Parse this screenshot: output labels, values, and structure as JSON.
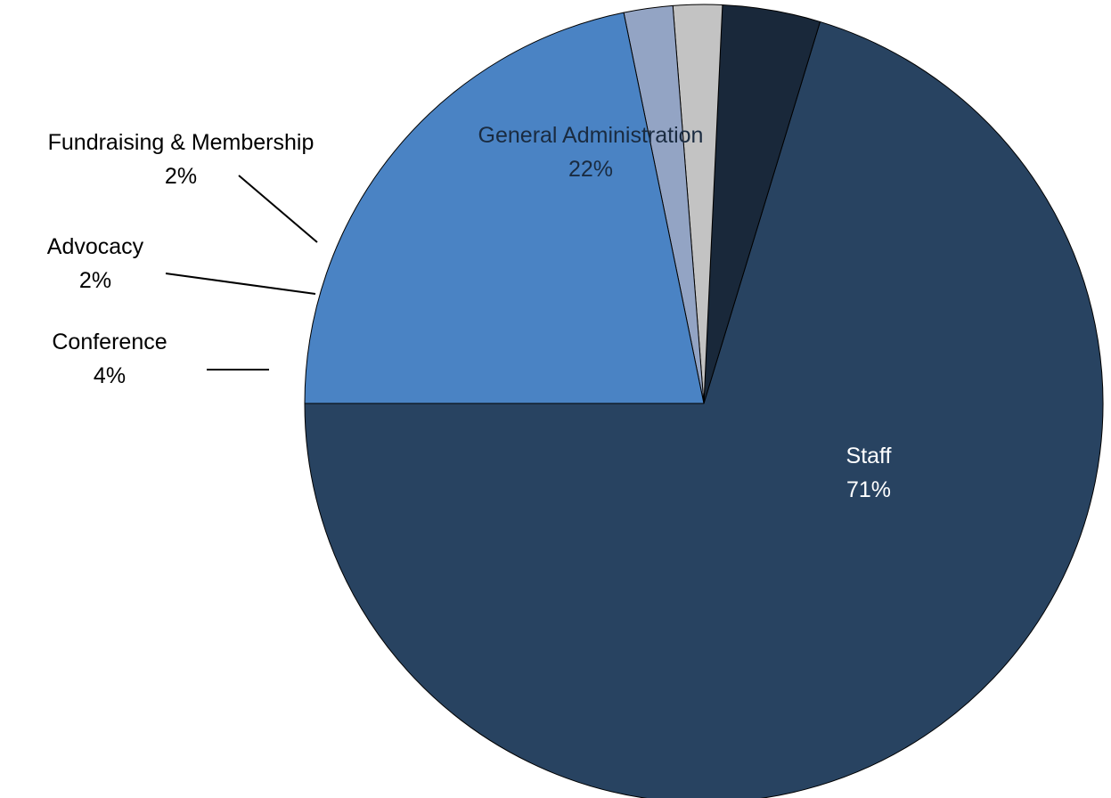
{
  "chart_data": {
    "type": "pie",
    "title": "",
    "slices": [
      {
        "label": "Staff",
        "value": 71,
        "display": "71%",
        "color": "#284361",
        "text_color": "#ffffff"
      },
      {
        "label": "Conference",
        "value": 4,
        "display": "4%",
        "color": "#19283a",
        "text_color": "#000000"
      },
      {
        "label": "Advocacy",
        "value": 2,
        "display": "2%",
        "color": "#c3c3c3",
        "text_color": "#000000"
      },
      {
        "label": "Fundraising & Membership",
        "value": 2,
        "display": "2%",
        "color": "#93a4c4",
        "text_color": "#000000"
      },
      {
        "label": "General Administration",
        "value": 22,
        "display": "22%",
        "color": "#4a83c4",
        "text_color": "#1a2b40"
      }
    ],
    "start_angle_deg": 180,
    "direction": "counter-clockwise",
    "legend": "none",
    "label_placement": "inside for large slices, outside with leader lines for small slices"
  }
}
